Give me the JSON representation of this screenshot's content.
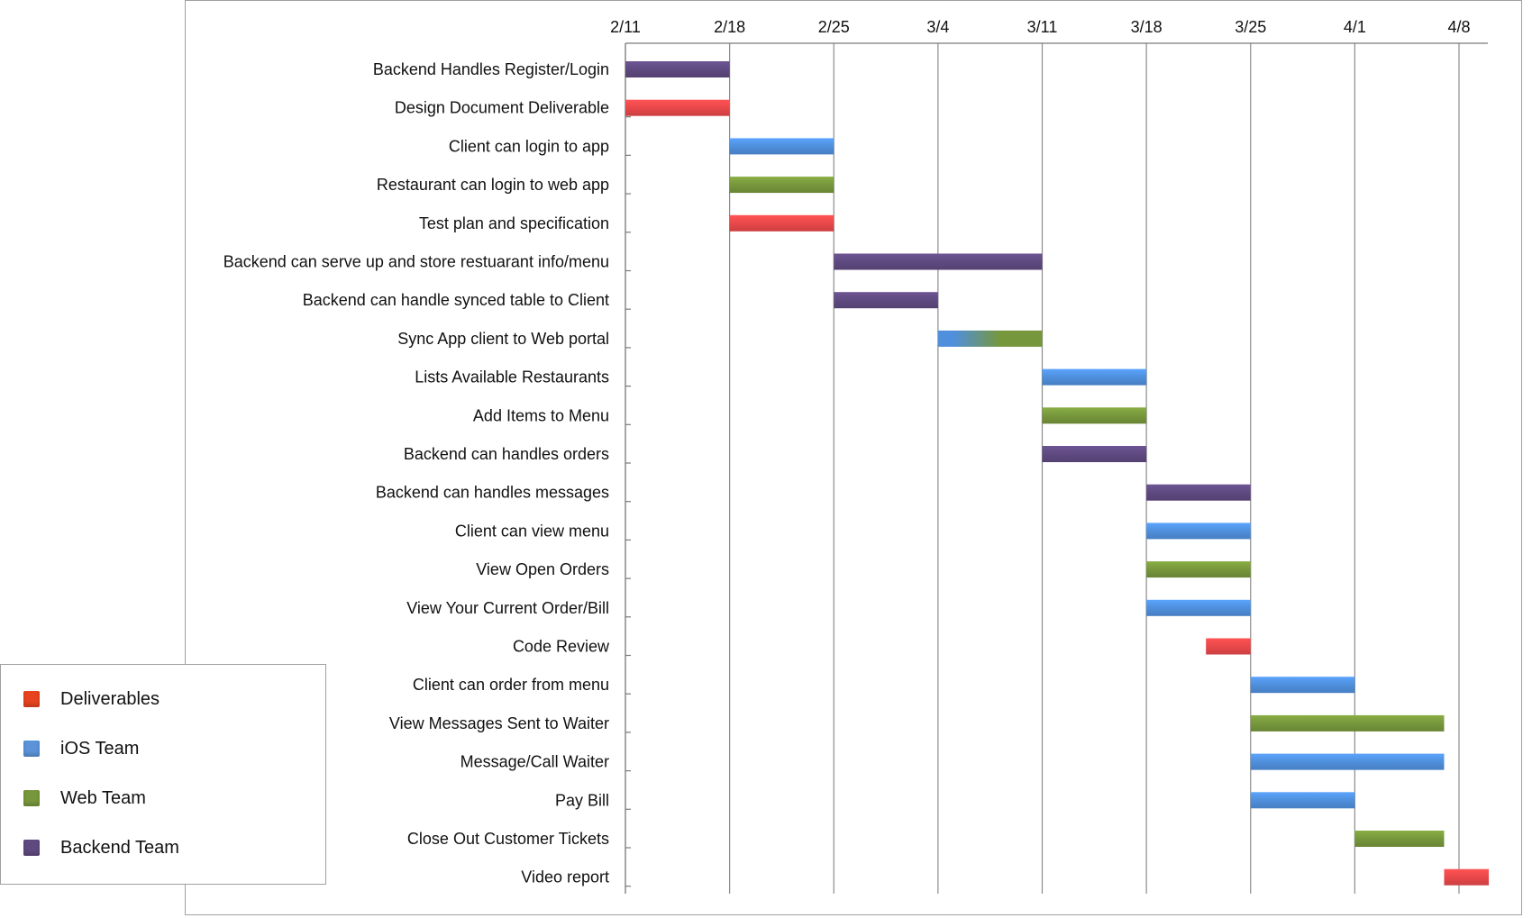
{
  "chart_data": {
    "type": "gantt",
    "title": "",
    "x_axis": {
      "tick_labels": [
        "2/11",
        "2/18",
        "2/25",
        "3/4",
        "3/11",
        "3/18",
        "3/25",
        "4/1",
        "4/8"
      ],
      "range": [
        "2/11",
        "4/11"
      ],
      "position": "top",
      "grid": true
    },
    "teams": [
      {
        "name": "Deliverables",
        "color": "#e8484a"
      },
      {
        "name": "iOS Team",
        "color": "#4f8fdc"
      },
      {
        "name": "Web Team",
        "color": "#77973c"
      },
      {
        "name": "Backend Team",
        "color": "#5f4a80"
      }
    ],
    "legend": {
      "placement": "bottom-left",
      "items": [
        {
          "label": "Deliverables",
          "color": "#e8431f"
        },
        {
          "label": "iOS Team",
          "color": "#5b93d8"
        },
        {
          "label": "Web Team",
          "color": "#77973c"
        },
        {
          "label": "Backend Team",
          "color": "#5f4a80"
        }
      ]
    },
    "tasks": [
      {
        "label": "Backend Handles Register/Login",
        "start": "2/11",
        "end": "2/18",
        "team": "Backend Team"
      },
      {
        "label": "Design Document Deliverable",
        "start": "2/11",
        "end": "2/18",
        "team": "Deliverables"
      },
      {
        "label": "Client can login to app",
        "start": "2/18",
        "end": "2/25",
        "team": "iOS Team"
      },
      {
        "label": "Restaurant can login to web app",
        "start": "2/18",
        "end": "2/25",
        "team": "Web Team"
      },
      {
        "label": "Test plan and specification",
        "start": "2/18",
        "end": "2/25",
        "team": "Deliverables"
      },
      {
        "label": "Backend can serve up and store restuarant info/menu",
        "start": "2/25",
        "end": "3/11",
        "team": "Backend Team"
      },
      {
        "label": "Backend can handle synced table to Client",
        "start": "2/25",
        "end": "3/4",
        "team": "Backend Team"
      },
      {
        "label": "Sync App client to Web portal",
        "start": "3/4",
        "end": "3/11",
        "team": "iOS Team",
        "team2": "Web Team"
      },
      {
        "label": "Lists Available Restaurants",
        "start": "3/11",
        "end": "3/18",
        "team": "iOS Team"
      },
      {
        "label": "Add Items to Menu",
        "start": "3/11",
        "end": "3/18",
        "team": "Web Team"
      },
      {
        "label": "Backend can handles orders",
        "start": "3/11",
        "end": "3/18",
        "team": "Backend Team"
      },
      {
        "label": "Backend can handles messages",
        "start": "3/18",
        "end": "3/25",
        "team": "Backend Team"
      },
      {
        "label": "Client can view menu",
        "start": "3/18",
        "end": "3/25",
        "team": "iOS Team"
      },
      {
        "label": "View Open Orders",
        "start": "3/18",
        "end": "3/25",
        "team": "Web Team"
      },
      {
        "label": "View Your Current Order/Bill",
        "start": "3/18",
        "end": "3/25",
        "team": "iOS Team"
      },
      {
        "label": "Code Review",
        "start": "3/22",
        "end": "3/25",
        "team": "Deliverables"
      },
      {
        "label": "Client can order from menu",
        "start": "3/25",
        "end": "4/1",
        "team": "iOS Team"
      },
      {
        "label": "View Messages Sent to Waiter",
        "start": "3/25",
        "end": "4/7",
        "team": "Web Team"
      },
      {
        "label": "Message/Call Waiter",
        "start": "3/25",
        "end": "4/7",
        "team": "iOS Team"
      },
      {
        "label": "Pay Bill",
        "start": "3/25",
        "end": "4/1",
        "team": "iOS Team"
      },
      {
        "label": "Close Out Customer Tickets",
        "start": "4/1",
        "end": "4/7",
        "team": "Web Team"
      },
      {
        "label": "Video report",
        "start": "4/7",
        "end": "4/10",
        "team": "Deliverables"
      }
    ]
  }
}
